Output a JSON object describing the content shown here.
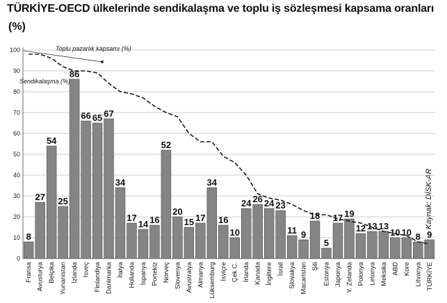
{
  "title": "TÜRKİYE-OECD ülkelerinde sendikalaşma ve toplu iş sözleşmesi kapsama oranları",
  "unit": "(%)",
  "source": "Kaynak: DİSK-AR",
  "chart_data": {
    "type": "bar",
    "title": "TÜRKİYE-OECD ülkelerinde sendikalaşma ve toplu iş sözleşmesi kapsama oranları",
    "ylabel": "(%)",
    "xlabel": "",
    "ylim": [
      0,
      100
    ],
    "yticks": [
      0,
      10,
      20,
      30,
      40,
      50,
      60,
      70,
      80,
      90,
      100
    ],
    "grid": true,
    "categories": [
      "Fransa",
      "Avusturya",
      "Belçika",
      "Yunanistan",
      "İzlanda",
      "İsveç",
      "Finlandiya",
      "Danimarka",
      "İtalya",
      "Hollanda",
      "İspanya",
      "Portekiz",
      "Norveç",
      "Slovenya",
      "Avustralya",
      "Almanya",
      "Lüksemburg",
      "İsviçre",
      "Çek C.",
      "İrlanda",
      "Kanada",
      "İngiltere",
      "İsrail",
      "Slovakya",
      "Macaristan",
      "Şili",
      "Estonya",
      "Japonya",
      "Y. Zelanda",
      "Polonya",
      "Letonya",
      "Meksika",
      "ABD",
      "Kore",
      "Litvanya",
      "TÜRKİYE"
    ],
    "series": [
      {
        "name": "Sendikalaşma (%)",
        "type": "bar",
        "values": [
          8,
          27,
          54,
          25,
          86,
          66,
          65,
          67,
          34,
          17,
          14,
          16,
          52,
          20,
          15,
          17,
          34,
          16,
          10,
          24,
          26,
          24,
          23,
          11,
          9,
          18,
          5,
          17,
          19,
          12,
          13,
          13,
          10,
          10,
          8,
          9
        ]
      },
      {
        "name": "Toplu pazarlık kapsamı (%)",
        "type": "line",
        "values": [
          98,
          98,
          96,
          92,
          90,
          90,
          89,
          84,
          80,
          79,
          77,
          73,
          70,
          68,
          60,
          56,
          56,
          49,
          46,
          40,
          31,
          29,
          28,
          26,
          23,
          21,
          21,
          19,
          18,
          17,
          15,
          13,
          12,
          11,
          8,
          7
        ]
      }
    ],
    "annotations": [
      "Toplu pazarlık kapsamı (%)",
      "Sendikalaşma (%)"
    ]
  }
}
